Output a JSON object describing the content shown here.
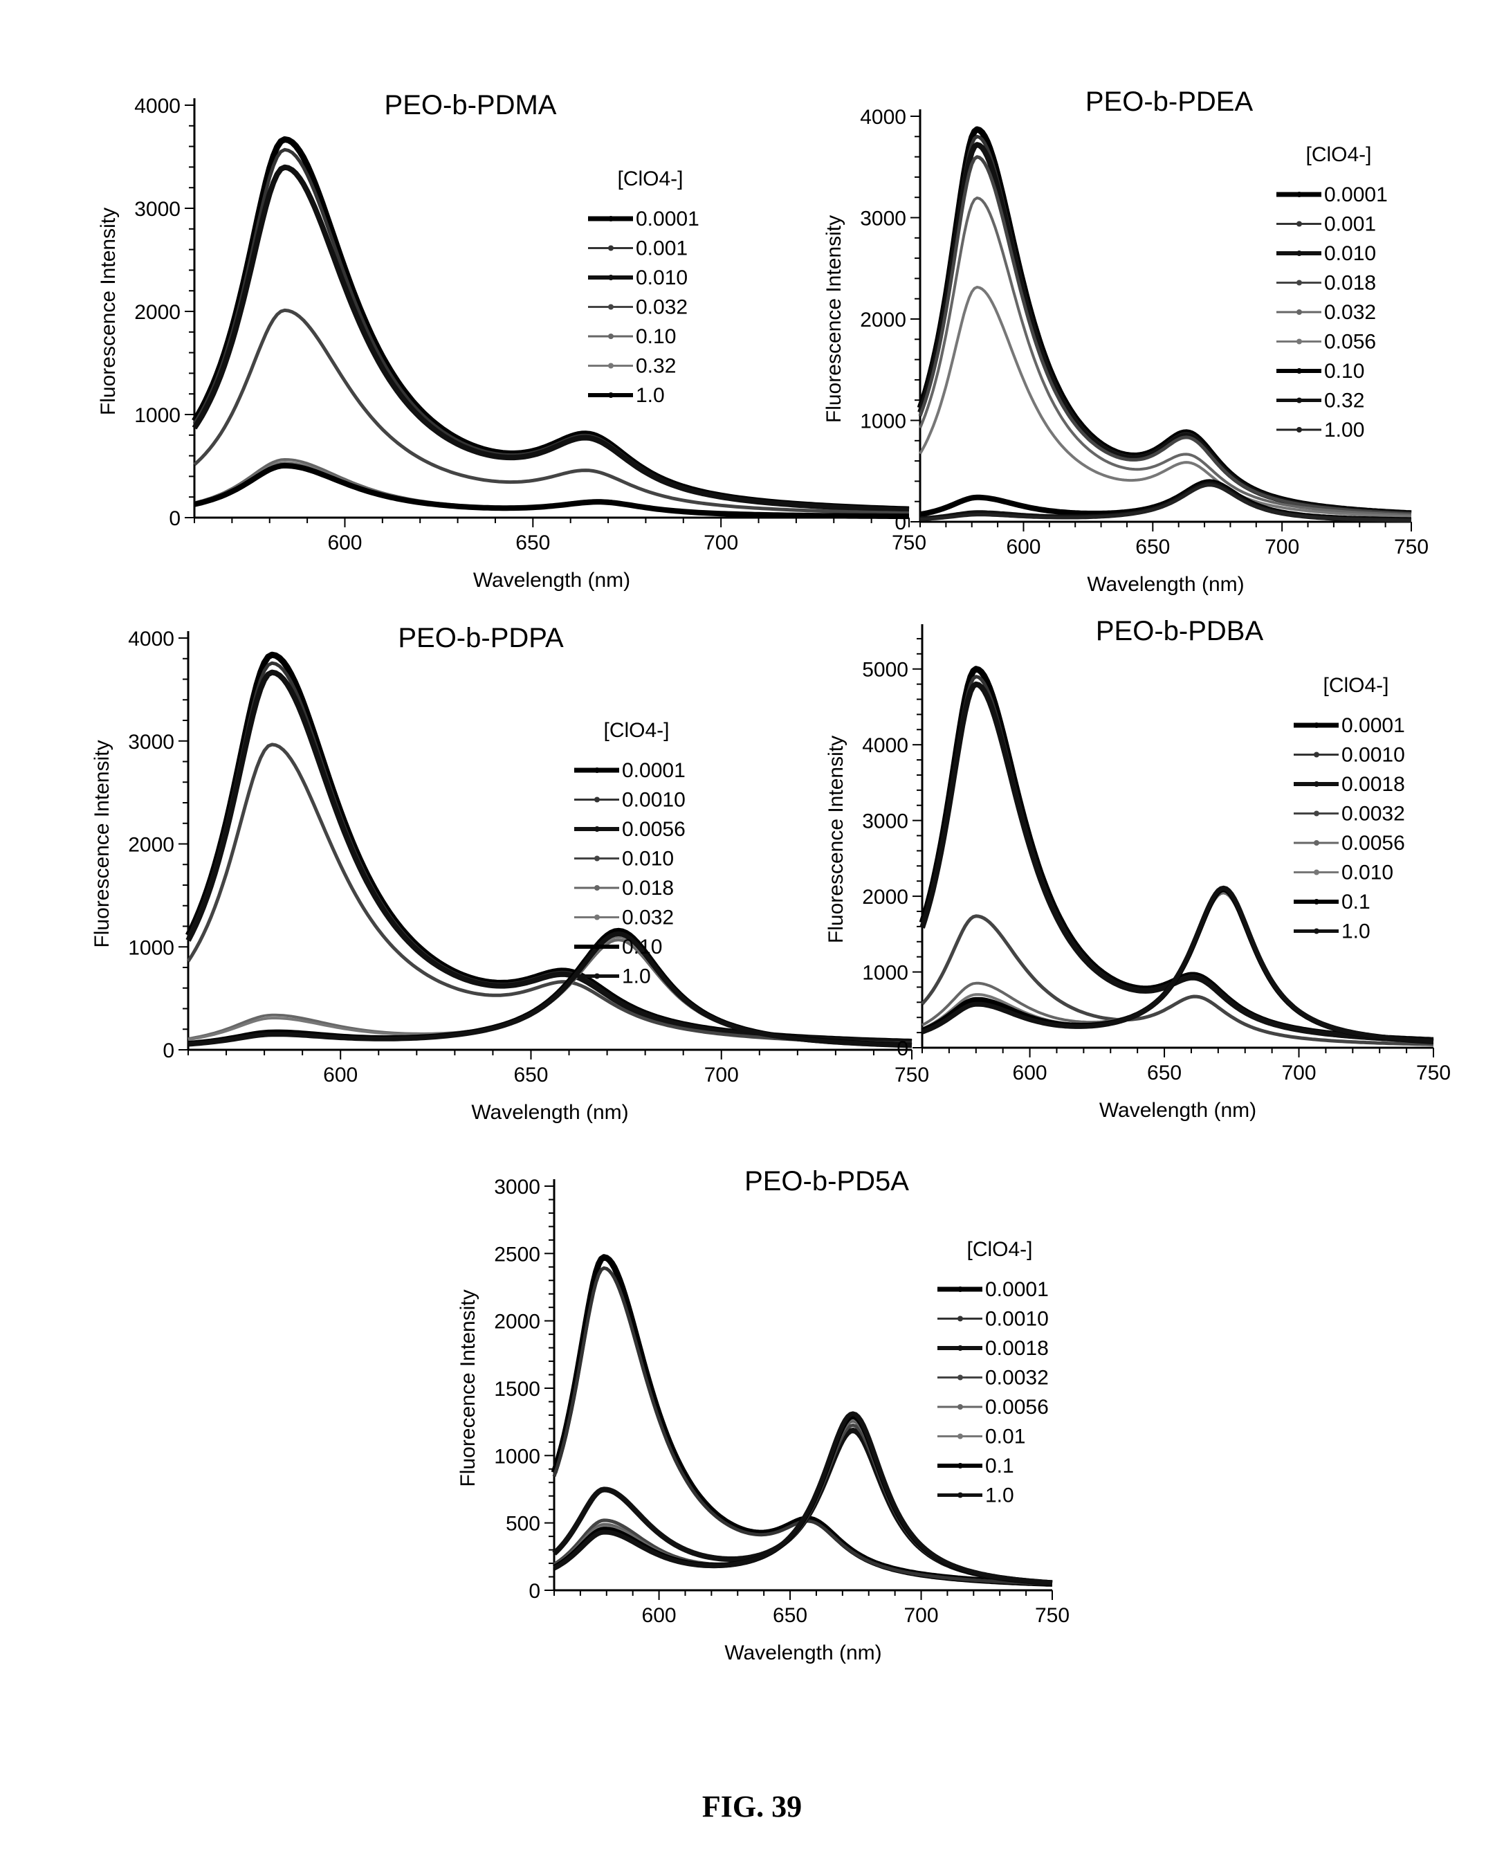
{
  "figure": {
    "caption": "FIG. 39"
  },
  "legend_title": "[ClO4-]",
  "chart_data": [
    {
      "type": "line",
      "title": "PEO-b-PDMA",
      "xlabel": "Wavelength (nm)",
      "ylabel": "Fluorescence Intensity",
      "xlim": [
        560,
        750
      ],
      "ylim": [
        0,
        4000
      ],
      "xticks": [
        600,
        650,
        700,
        750
      ],
      "yticks": [
        0,
        1000,
        2000,
        3000,
        4000
      ],
      "legend_title": "[ClO4-]",
      "legend_position": "right",
      "series": [
        {
          "name": "0.0001",
          "peak1": {
            "x": 584,
            "y": 3650
          },
          "peak2": {
            "x": 665,
            "y": 560
          },
          "start": 780,
          "end": 60
        },
        {
          "name": "0.001",
          "peak1": {
            "x": 584,
            "y": 3550
          },
          "peak2": {
            "x": 665,
            "y": 550
          },
          "start": 760,
          "end": 60
        },
        {
          "name": "0.010",
          "peak1": {
            "x": 584,
            "y": 3380
          },
          "peak2": {
            "x": 665,
            "y": 540
          },
          "start": 740,
          "end": 60
        },
        {
          "name": "0.032",
          "peak1": {
            "x": 584,
            "y": 2000
          },
          "peak2": {
            "x": 665,
            "y": 320
          },
          "start": 520,
          "end": 50
        },
        {
          "name": "0.10",
          "peak1": {
            "x": 584,
            "y": 560
          },
          "peak2": {
            "x": 668,
            "y": 130
          },
          "start": 170,
          "end": 40
        },
        {
          "name": "0.32",
          "peak1": {
            "x": 584,
            "y": 530
          },
          "peak2": {
            "x": 668,
            "y": 130
          },
          "start": 160,
          "end": 40
        },
        {
          "name": "1.0",
          "peak1": {
            "x": 584,
            "y": 500
          },
          "peak2": {
            "x": 668,
            "y": 120
          },
          "start": 150,
          "end": 40
        }
      ]
    },
    {
      "type": "line",
      "title": "PEO-b-PDEA",
      "xlabel": "Wavelength (nm)",
      "ylabel": "Fluorescence Intensity",
      "xlim": [
        560,
        750
      ],
      "ylim": [
        0,
        4000
      ],
      "xticks": [
        600,
        650,
        700,
        750
      ],
      "yticks": [
        0,
        1000,
        2000,
        3000,
        4000
      ],
      "legend_title": "[ClO4-]",
      "legend_position": "right",
      "series": [
        {
          "name": "0.0001",
          "peak1": {
            "x": 582,
            "y": 3850
          },
          "peak2": {
            "x": 664,
            "y": 620
          },
          "start": 1300,
          "end": 60
        },
        {
          "name": "0.001",
          "peak1": {
            "x": 582,
            "y": 3780
          },
          "peak2": {
            "x": 664,
            "y": 610
          },
          "start": 1280,
          "end": 60
        },
        {
          "name": "0.010",
          "peak1": {
            "x": 582,
            "y": 3700
          },
          "peak2": {
            "x": 664,
            "y": 600
          },
          "start": 1250,
          "end": 60
        },
        {
          "name": "0.018",
          "peak1": {
            "x": 582,
            "y": 3580
          },
          "peak2": {
            "x": 664,
            "y": 590
          },
          "start": 1200,
          "end": 60
        },
        {
          "name": "0.032",
          "peak1": {
            "x": 582,
            "y": 3180
          },
          "peak2": {
            "x": 664,
            "y": 450
          },
          "start": 1050,
          "end": 50
        },
        {
          "name": "0.056",
          "peak1": {
            "x": 582,
            "y": 2300
          },
          "peak2": {
            "x": 664,
            "y": 430
          },
          "start": 780,
          "end": 50
        },
        {
          "name": "0.10",
          "peak1": {
            "x": 582,
            "y": 230
          },
          "peak2": {
            "x": 672,
            "y": 380
          },
          "start": 90,
          "end": 40
        },
        {
          "name": "0.32",
          "peak1": {
            "x": 582,
            "y": 80
          },
          "peak2": {
            "x": 672,
            "y": 370
          },
          "start": 30,
          "end": 40
        },
        {
          "name": "1.00",
          "peak1": {
            "x": 582,
            "y": 60
          },
          "peak2": {
            "x": 672,
            "y": 360
          },
          "start": 20,
          "end": 40
        }
      ]
    },
    {
      "type": "line",
      "title": "PEO-b-PDPA",
      "xlabel": "Wavelength (nm)",
      "ylabel": "Fluorescence Intensity",
      "xlim": [
        560,
        750
      ],
      "ylim": [
        0,
        4000
      ],
      "xticks": [
        600,
        650,
        700,
        750
      ],
      "yticks": [
        0,
        1000,
        2000,
        3000,
        4000
      ],
      "legend_title": "[ClO4-]",
      "legend_position": "right",
      "series": [
        {
          "name": "0.0001",
          "peak1": {
            "x": 582,
            "y": 3820
          },
          "peak2": {
            "x": 660,
            "y": 480
          },
          "start": 1000,
          "end": 40
        },
        {
          "name": "0.0010",
          "peak1": {
            "x": 582,
            "y": 3740
          },
          "peak2": {
            "x": 660,
            "y": 470
          },
          "start": 980,
          "end": 40
        },
        {
          "name": "0.0056",
          "peak1": {
            "x": 582,
            "y": 3650
          },
          "peak2": {
            "x": 660,
            "y": 460
          },
          "start": 960,
          "end": 40
        },
        {
          "name": "0.010",
          "peak1": {
            "x": 582,
            "y": 2950
          },
          "peak2": {
            "x": 660,
            "y": 440
          },
          "start": 800,
          "end": 40
        },
        {
          "name": "0.018",
          "peak1": {
            "x": 582,
            "y": 310
          },
          "peak2": {
            "x": 673,
            "y": 1050
          },
          "start": 110,
          "end": 150
        },
        {
          "name": "0.032",
          "peak1": {
            "x": 582,
            "y": 280
          },
          "peak2": {
            "x": 673,
            "y": 1080
          },
          "start": 100,
          "end": 150
        },
        {
          "name": "0.10",
          "peak1": {
            "x": 582,
            "y": 140
          },
          "peak2": {
            "x": 673,
            "y": 1150
          },
          "start": 50,
          "end": 150
        },
        {
          "name": "1.0",
          "peak1": {
            "x": 582,
            "y": 120
          },
          "peak2": {
            "x": 673,
            "y": 1120
          },
          "start": 40,
          "end": 150
        }
      ]
    },
    {
      "type": "line",
      "title": "PEO-b-PDBA",
      "xlabel": "Wavelength (nm)",
      "ylabel": "Fluorescence Intensity",
      "xlim": [
        560,
        750
      ],
      "ylim": [
        0,
        5500
      ],
      "xticks": [
        600,
        650,
        700,
        750
      ],
      "yticks": [
        0,
        1000,
        2000,
        3000,
        4000,
        5000
      ],
      "legend_title": "[ClO4-]",
      "legend_position": "right",
      "series": [
        {
          "name": "0.0001",
          "peak1": {
            "x": 580,
            "y": 4980
          },
          "peak2": {
            "x": 662,
            "y": 620
          },
          "start": 2200,
          "end": 60
        },
        {
          "name": "0.0010",
          "peak1": {
            "x": 580,
            "y": 4880
          },
          "peak2": {
            "x": 662,
            "y": 610
          },
          "start": 2100,
          "end": 60
        },
        {
          "name": "0.0018",
          "peak1": {
            "x": 580,
            "y": 4780
          },
          "peak2": {
            "x": 662,
            "y": 600
          },
          "start": 1750,
          "end": 60
        },
        {
          "name": "0.0032",
          "peak1": {
            "x": 580,
            "y": 1720
          },
          "peak2": {
            "x": 662,
            "y": 560
          },
          "start": 750,
          "end": 50
        },
        {
          "name": "0.0056",
          "peak1": {
            "x": 580,
            "y": 800
          },
          "peak2": {
            "x": 672,
            "y": 2000
          },
          "start": 330,
          "end": 220
        },
        {
          "name": "0.010",
          "peak1": {
            "x": 580,
            "y": 650
          },
          "peak2": {
            "x": 672,
            "y": 2030
          },
          "start": 280,
          "end": 220
        },
        {
          "name": "0.1",
          "peak1": {
            "x": 580,
            "y": 580
          },
          "peak2": {
            "x": 672,
            "y": 2060
          },
          "start": 250,
          "end": 230
        },
        {
          "name": "1.0",
          "peak1": {
            "x": 580,
            "y": 520
          },
          "peak2": {
            "x": 672,
            "y": 2080
          },
          "start": 220,
          "end": 240
        }
      ]
    },
    {
      "type": "line",
      "title": "PEO-b-PD5A",
      "xlabel": "Wavelength (nm)",
      "ylabel": "Fluorecence Intensity",
      "xlim": [
        560,
        750
      ],
      "ylim": [
        0,
        3000
      ],
      "xticks": [
        600,
        650,
        700,
        750
      ],
      "yticks": [
        0,
        500,
        1000,
        1500,
        2000,
        2500,
        3000
      ],
      "legend_title": "[ClO4-]",
      "legend_position": "right",
      "series": [
        {
          "name": "0.0001",
          "peak1": {
            "x": 579,
            "y": 2460
          },
          "peak2": {
            "x": 658,
            "y": 350
          },
          "start": 950,
          "end": 20
        },
        {
          "name": "0.0010",
          "peak1": {
            "x": 579,
            "y": 2380
          },
          "peak2": {
            "x": 658,
            "y": 340
          },
          "start": 920,
          "end": 20
        },
        {
          "name": "0.0018",
          "peak1": {
            "x": 579,
            "y": 720
          },
          "peak2": {
            "x": 674,
            "y": 1150
          },
          "start": 340,
          "end": 130
        },
        {
          "name": "0.0032",
          "peak1": {
            "x": 579,
            "y": 490
          },
          "peak2": {
            "x": 674,
            "y": 1200
          },
          "start": 280,
          "end": 140
        },
        {
          "name": "0.0056",
          "peak1": {
            "x": 579,
            "y": 460
          },
          "peak2": {
            "x": 674,
            "y": 1230
          },
          "start": 260,
          "end": 140
        },
        {
          "name": "0.01",
          "peak1": {
            "x": 579,
            "y": 440
          },
          "peak2": {
            "x": 674,
            "y": 1250
          },
          "start": 240,
          "end": 150
        },
        {
          "name": "0.1",
          "peak1": {
            "x": 579,
            "y": 420
          },
          "peak2": {
            "x": 674,
            "y": 1270
          },
          "start": 220,
          "end": 150
        },
        {
          "name": "1.0",
          "peak1": {
            "x": 579,
            "y": 400
          },
          "peak2": {
            "x": 674,
            "y": 1290
          },
          "start": 200,
          "end": 150
        }
      ]
    }
  ]
}
